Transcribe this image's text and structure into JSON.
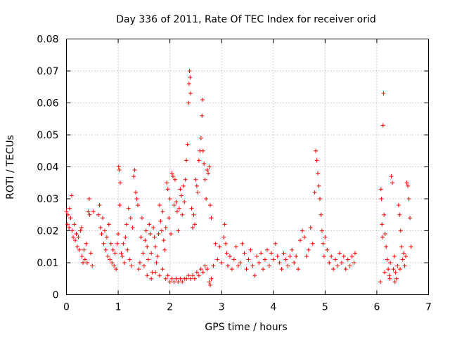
{
  "chart_data": {
    "type": "scatter",
    "title": "Day 336 of 2011, Rate Of TEC Index for receiver orid",
    "xlabel": "GPS time / hours",
    "ylabel": "ROTI / TECUs",
    "xlim": [
      0,
      7
    ],
    "ylim": [
      0,
      0.08
    ],
    "xticks": [
      "0",
      "1",
      "2",
      "3",
      "4",
      "5",
      "6",
      "7"
    ],
    "yticks": [
      "0",
      "0.01",
      "0.02",
      "0.03",
      "0.04",
      "0.05",
      "0.06",
      "0.07",
      "0.08"
    ],
    "grid": true,
    "marker": "plus",
    "color": "#ff0000",
    "series": [
      {
        "points": [
          [
            0.0,
            0.026
          ],
          [
            0.02,
            0.022
          ],
          [
            0.03,
            0.025
          ],
          [
            0.05,
            0.021
          ],
          [
            0.06,
            0.027
          ],
          [
            0.08,
            0.024
          ],
          [
            0.1,
            0.031
          ],
          [
            0.11,
            0.02
          ],
          [
            0.13,
            0.018
          ],
          [
            0.15,
            0.022
          ],
          [
            0.17,
            0.017
          ],
          [
            0.19,
            0.019
          ],
          [
            0.21,
            0.015
          ],
          [
            0.23,
            0.018
          ],
          [
            0.25,
            0.014
          ],
          [
            0.27,
            0.02
          ],
          [
            0.29,
            0.021
          ],
          [
            0.3,
            0.012
          ],
          [
            0.32,
            0.01
          ],
          [
            0.34,
            0.014
          ],
          [
            0.36,
            0.011
          ],
          [
            0.38,
            0.016
          ],
          [
            0.4,
            0.01
          ],
          [
            0.42,
            0.026
          ],
          [
            0.44,
            0.03
          ],
          [
            0.45,
            0.025
          ],
          [
            0.47,
            0.013
          ],
          [
            0.5,
            0.009
          ],
          [
            0.52,
            0.026
          ],
          [
            0.62,
            0.025
          ],
          [
            0.64,
            0.028
          ],
          [
            0.66,
            0.021
          ],
          [
            0.68,
            0.019
          ],
          [
            0.7,
            0.024
          ],
          [
            0.72,
            0.016
          ],
          [
            0.74,
            0.02
          ],
          [
            0.76,
            0.014
          ],
          [
            0.78,
            0.018
          ],
          [
            0.8,
            0.012
          ],
          [
            0.82,
            0.022
          ],
          [
            0.84,
            0.011
          ],
          [
            0.86,
            0.016
          ],
          [
            0.88,
            0.01
          ],
          [
            0.9,
            0.014
          ],
          [
            0.92,
            0.009
          ],
          [
            0.94,
            0.013
          ],
          [
            0.96,
            0.008
          ],
          [
            0.98,
            0.016
          ],
          [
            1.0,
            0.019
          ],
          [
            1.01,
            0.04
          ],
          [
            1.02,
            0.039
          ],
          [
            1.03,
            0.028
          ],
          [
            1.04,
            0.035
          ],
          [
            1.06,
            0.013
          ],
          [
            1.08,
            0.012
          ],
          [
            1.1,
            0.016
          ],
          [
            1.12,
            0.01
          ],
          [
            1.14,
            0.018
          ],
          [
            1.16,
            0.022
          ],
          [
            1.18,
            0.014
          ],
          [
            1.2,
            0.027
          ],
          [
            1.22,
            0.011
          ],
          [
            1.24,
            0.024
          ],
          [
            1.26,
            0.009
          ],
          [
            1.28,
            0.021
          ],
          [
            1.3,
            0.037
          ],
          [
            1.32,
            0.039
          ],
          [
            1.34,
            0.032
          ],
          [
            1.36,
            0.03
          ],
          [
            1.38,
            0.028
          ],
          [
            1.4,
            0.008
          ],
          [
            1.42,
            0.01
          ],
          [
            1.44,
            0.018
          ],
          [
            1.46,
            0.024
          ],
          [
            1.48,
            0.013
          ],
          [
            1.5,
            0.009
          ],
          [
            1.52,
            0.017
          ],
          [
            1.54,
            0.02
          ],
          [
            1.56,
            0.015
          ],
          [
            1.58,
            0.011
          ],
          [
            1.6,
            0.022
          ],
          [
            1.62,
            0.019
          ],
          [
            1.64,
            0.013
          ],
          [
            1.66,
            0.007
          ],
          [
            1.68,
            0.021
          ],
          [
            1.7,
            0.018
          ],
          [
            1.72,
            0.015
          ],
          [
            1.74,
            0.01
          ],
          [
            1.76,
            0.012
          ],
          [
            1.78,
            0.019
          ],
          [
            1.8,
            0.028
          ],
          [
            1.82,
            0.023
          ],
          [
            1.84,
            0.02
          ],
          [
            1.86,
            0.026
          ],
          [
            1.88,
            0.017
          ],
          [
            1.9,
            0.014
          ],
          [
            1.92,
            0.021
          ],
          [
            1.94,
            0.035
          ],
          [
            1.96,
            0.033
          ],
          [
            1.98,
            0.024
          ],
          [
            2.0,
            0.03
          ],
          [
            2.02,
            0.019
          ],
          [
            2.04,
            0.038
          ],
          [
            2.06,
            0.037
          ],
          [
            2.08,
            0.028
          ],
          [
            2.1,
            0.036
          ],
          [
            2.12,
            0.029
          ],
          [
            2.14,
            0.026
          ],
          [
            2.16,
            0.02
          ],
          [
            2.18,
            0.027
          ],
          [
            2.2,
            0.033
          ],
          [
            2.22,
            0.031
          ],
          [
            2.24,
            0.025
          ],
          [
            2.26,
            0.034
          ],
          [
            2.28,
            0.029
          ],
          [
            2.3,
            0.036
          ],
          [
            2.32,
            0.042
          ],
          [
            2.34,
            0.047
          ],
          [
            2.36,
            0.06
          ],
          [
            2.37,
            0.066
          ],
          [
            2.38,
            0.07
          ],
          [
            2.39,
            0.068
          ],
          [
            2.4,
            0.063
          ],
          [
            2.42,
            0.027
          ],
          [
            2.44,
            0.021
          ],
          [
            2.46,
            0.025
          ],
          [
            2.48,
            0.022
          ],
          [
            2.5,
            0.036
          ],
          [
            2.52,
            0.034
          ],
          [
            2.54,
            0.032
          ],
          [
            2.56,
            0.042
          ],
          [
            2.58,
            0.045
          ],
          [
            2.6,
            0.049
          ],
          [
            2.62,
            0.056
          ],
          [
            2.63,
            0.061
          ],
          [
            2.64,
            0.045
          ],
          [
            2.66,
            0.041
          ],
          [
            2.68,
            0.036
          ],
          [
            2.7,
            0.03
          ],
          [
            2.72,
            0.039
          ],
          [
            2.74,
            0.038
          ],
          [
            2.76,
            0.04
          ],
          [
            2.78,
            0.028
          ],
          [
            2.8,
            0.024
          ],
          [
            1.56,
            0.006
          ],
          [
            1.64,
            0.005
          ],
          [
            1.72,
            0.007
          ],
          [
            1.8,
            0.006
          ],
          [
            1.86,
            0.008
          ],
          [
            1.92,
            0.005
          ],
          [
            1.96,
            0.006
          ],
          [
            2.0,
            0.004
          ],
          [
            2.04,
            0.005
          ],
          [
            2.08,
            0.004
          ],
          [
            2.12,
            0.005
          ],
          [
            2.16,
            0.004
          ],
          [
            2.2,
            0.005
          ],
          [
            2.24,
            0.004
          ],
          [
            2.28,
            0.005
          ],
          [
            2.32,
            0.005
          ],
          [
            2.36,
            0.006
          ],
          [
            2.4,
            0.005
          ],
          [
            2.44,
            0.006
          ],
          [
            2.48,
            0.005
          ],
          [
            2.52,
            0.007
          ],
          [
            2.56,
            0.006
          ],
          [
            2.6,
            0.008
          ],
          [
            2.64,
            0.007
          ],
          [
            2.68,
            0.009
          ],
          [
            2.72,
            0.008
          ],
          [
            2.76,
            0.004
          ],
          [
            2.78,
            0.003
          ],
          [
            2.8,
            0.005
          ],
          [
            2.84,
            0.009
          ],
          [
            2.88,
            0.016
          ],
          [
            2.92,
            0.011
          ],
          [
            2.96,
            0.015
          ],
          [
            3.0,
            0.01
          ],
          [
            3.04,
            0.018
          ],
          [
            3.06,
            0.022
          ],
          [
            3.08,
            0.016
          ],
          [
            3.1,
            0.013
          ],
          [
            3.12,
            0.009
          ],
          [
            3.16,
            0.012
          ],
          [
            3.2,
            0.008
          ],
          [
            3.24,
            0.011
          ],
          [
            3.28,
            0.015
          ],
          [
            3.32,
            0.009
          ],
          [
            3.36,
            0.01
          ],
          [
            3.4,
            0.016
          ],
          [
            3.44,
            0.013
          ],
          [
            3.48,
            0.008
          ],
          [
            3.52,
            0.011
          ],
          [
            3.56,
            0.014
          ],
          [
            3.6,
            0.009
          ],
          [
            3.64,
            0.006
          ],
          [
            3.68,
            0.012
          ],
          [
            3.72,
            0.01
          ],
          [
            3.76,
            0.013
          ],
          [
            3.8,
            0.008
          ],
          [
            3.84,
            0.011
          ],
          [
            3.88,
            0.014
          ],
          [
            3.92,
            0.009
          ],
          [
            3.96,
            0.013
          ],
          [
            4.0,
            0.011
          ],
          [
            4.04,
            0.016
          ],
          [
            4.08,
            0.012
          ],
          [
            4.12,
            0.01
          ],
          [
            4.16,
            0.008
          ],
          [
            4.2,
            0.013
          ],
          [
            4.24,
            0.011
          ],
          [
            4.28,
            0.009
          ],
          [
            4.32,
            0.012
          ],
          [
            4.36,
            0.014
          ],
          [
            4.4,
            0.01
          ],
          [
            4.44,
            0.012
          ],
          [
            4.48,
            0.008
          ],
          [
            4.52,
            0.017
          ],
          [
            4.56,
            0.02
          ],
          [
            4.6,
            0.018
          ],
          [
            4.64,
            0.012
          ],
          [
            4.68,
            0.014
          ],
          [
            4.72,
            0.021
          ],
          [
            4.76,
            0.016
          ],
          [
            4.8,
            0.032
          ],
          [
            4.82,
            0.045
          ],
          [
            4.84,
            0.042
          ],
          [
            4.86,
            0.038
          ],
          [
            4.88,
            0.034
          ],
          [
            4.9,
            0.03
          ],
          [
            4.92,
            0.025
          ],
          [
            4.94,
            0.02
          ],
          [
            4.96,
            0.016
          ],
          [
            4.98,
            0.012
          ],
          [
            5.0,
            0.018
          ],
          [
            5.04,
            0.014
          ],
          [
            5.08,
            0.01
          ],
          [
            5.12,
            0.012
          ],
          [
            5.16,
            0.008
          ],
          [
            5.2,
            0.011
          ],
          [
            5.24,
            0.009
          ],
          [
            5.28,
            0.013
          ],
          [
            5.32,
            0.01
          ],
          [
            5.36,
            0.012
          ],
          [
            5.4,
            0.008
          ],
          [
            5.44,
            0.011
          ],
          [
            5.48,
            0.009
          ],
          [
            5.52,
            0.012
          ],
          [
            5.56,
            0.01
          ],
          [
            5.58,
            0.013
          ],
          [
            6.08,
            0.033
          ],
          [
            6.09,
            0.03
          ],
          [
            6.1,
            0.022
          ],
          [
            6.11,
            0.018
          ],
          [
            6.12,
            0.053
          ],
          [
            6.13,
            0.063
          ],
          [
            6.14,
            0.025
          ],
          [
            6.16,
            0.019
          ],
          [
            6.18,
            0.015
          ],
          [
            6.2,
            0.011
          ],
          [
            6.22,
            0.008
          ],
          [
            6.24,
            0.006
          ],
          [
            6.26,
            0.01
          ],
          [
            6.28,
            0.037
          ],
          [
            6.3,
            0.035
          ],
          [
            6.32,
            0.008
          ],
          [
            6.34,
            0.012
          ],
          [
            6.36,
            0.007
          ],
          [
            6.38,
            0.005
          ],
          [
            6.4,
            0.009
          ],
          [
            6.42,
            0.028
          ],
          [
            6.44,
            0.025
          ],
          [
            6.46,
            0.02
          ],
          [
            6.48,
            0.015
          ],
          [
            6.5,
            0.011
          ],
          [
            6.52,
            0.013
          ],
          [
            6.54,
            0.009
          ],
          [
            6.56,
            0.012
          ],
          [
            6.58,
            0.035
          ],
          [
            6.6,
            0.034
          ],
          [
            6.62,
            0.03
          ],
          [
            6.64,
            0.024
          ],
          [
            6.66,
            0.015
          ],
          [
            6.07,
            0.004
          ],
          [
            6.15,
            0.007
          ],
          [
            6.25,
            0.005
          ],
          [
            6.35,
            0.004
          ],
          [
            6.45,
            0.008
          ]
        ]
      }
    ]
  }
}
